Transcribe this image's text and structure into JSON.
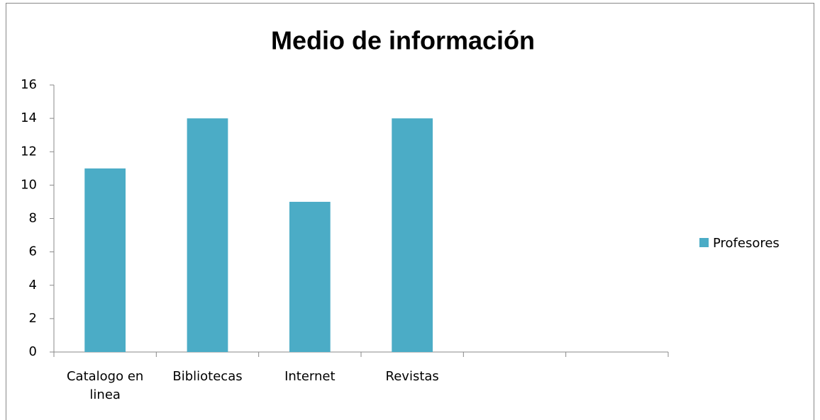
{
  "chart_data": {
    "type": "bar",
    "title": "Medio de información",
    "categories": [
      "Catalogo en linea",
      "Bibliotecas",
      "Internet",
      "Revistas",
      null,
      null
    ],
    "series": [
      {
        "name": "Profesores",
        "color": "#4bacc6",
        "values": [
          11,
          14,
          9,
          14,
          null,
          null
        ]
      }
    ],
    "ylim": [
      0,
      16
    ],
    "yticks": [
      0,
      2,
      4,
      6,
      8,
      10,
      12,
      14,
      16
    ],
    "grid": false,
    "legend": "right"
  }
}
